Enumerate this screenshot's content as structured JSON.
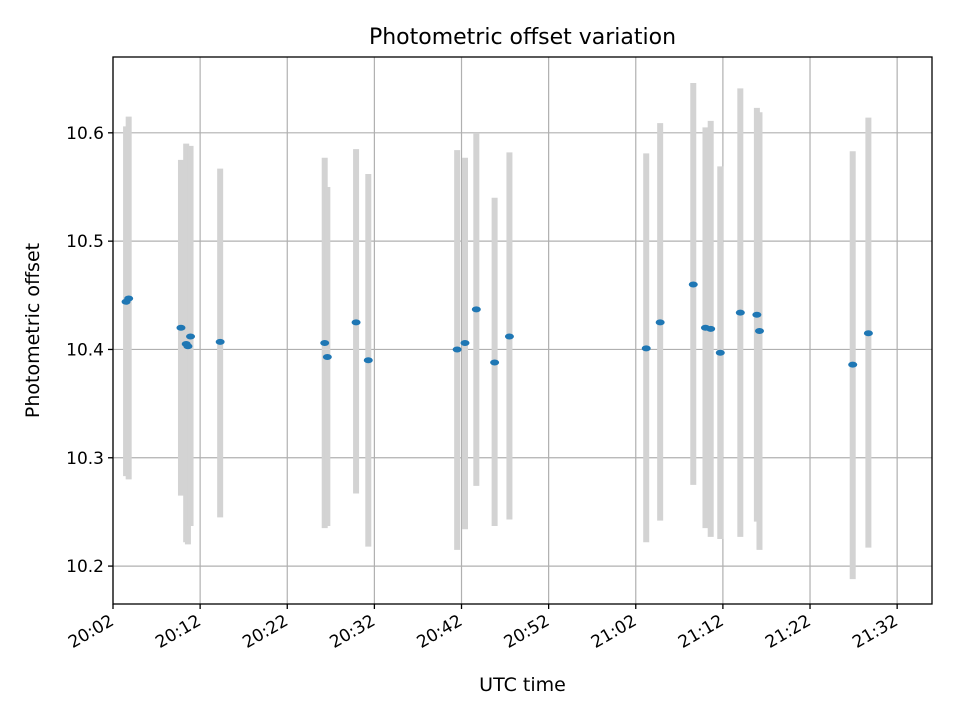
{
  "chart_data": {
    "type": "scatter",
    "title": "Photometric offset variation",
    "xlabel": "UTC time",
    "ylabel": "Photometric offset",
    "xlim": [
      "20:02:00",
      "21:36:00"
    ],
    "ylim": [
      10.165,
      10.67
    ],
    "grid": true,
    "x_ticks": [
      "20:02",
      "20:12",
      "20:22",
      "20:32",
      "20:42",
      "20:52",
      "21:02",
      "21:12",
      "21:22",
      "21:32"
    ],
    "y_ticks": [
      "10.2",
      "10.3",
      "10.4",
      "10.5",
      "10.6"
    ],
    "colors": {
      "point": "#1f77b4",
      "errorbar": "#d3d3d3",
      "grid": "#b0b0b0"
    },
    "points": [
      {
        "x": "20:03:30",
        "y": 10.444,
        "low": 10.283,
        "high": 10.606
      },
      {
        "x": "20:03:48",
        "y": 10.447,
        "low": 10.28,
        "high": 10.615
      },
      {
        "x": "20:09:48",
        "y": 10.42,
        "low": 10.265,
        "high": 10.575
      },
      {
        "x": "20:10:24",
        "y": 10.405,
        "low": 10.222,
        "high": 10.59
      },
      {
        "x": "20:10:36",
        "y": 10.403,
        "low": 10.22,
        "high": 10.587
      },
      {
        "x": "20:10:54",
        "y": 10.412,
        "low": 10.237,
        "high": 10.588
      },
      {
        "x": "20:14:18",
        "y": 10.407,
        "low": 10.245,
        "high": 10.567
      },
      {
        "x": "20:26:18",
        "y": 10.406,
        "low": 10.235,
        "high": 10.577
      },
      {
        "x": "20:26:36",
        "y": 10.393,
        "low": 10.237,
        "high": 10.55
      },
      {
        "x": "20:29:54",
        "y": 10.425,
        "low": 10.267,
        "high": 10.585
      },
      {
        "x": "20:31:18",
        "y": 10.39,
        "low": 10.218,
        "high": 10.562
      },
      {
        "x": "20:41:30",
        "y": 10.4,
        "low": 10.215,
        "high": 10.584
      },
      {
        "x": "20:42:24",
        "y": 10.406,
        "low": 10.234,
        "high": 10.577
      },
      {
        "x": "20:43:42",
        "y": 10.437,
        "low": 10.274,
        "high": 10.6
      },
      {
        "x": "20:45:48",
        "y": 10.388,
        "low": 10.237,
        "high": 10.54
      },
      {
        "x": "20:47:30",
        "y": 10.412,
        "low": 10.243,
        "high": 10.582
      },
      {
        "x": "21:03:12",
        "y": 10.401,
        "low": 10.222,
        "high": 10.581
      },
      {
        "x": "21:04:48",
        "y": 10.425,
        "low": 10.242,
        "high": 10.609
      },
      {
        "x": "21:08:36",
        "y": 10.46,
        "low": 10.275,
        "high": 10.646
      },
      {
        "x": "21:10:00",
        "y": 10.42,
        "low": 10.235,
        "high": 10.605
      },
      {
        "x": "21:10:36",
        "y": 10.419,
        "low": 10.227,
        "high": 10.611
      },
      {
        "x": "21:11:42",
        "y": 10.397,
        "low": 10.225,
        "high": 10.569
      },
      {
        "x": "21:14:00",
        "y": 10.434,
        "low": 10.227,
        "high": 10.641
      },
      {
        "x": "21:15:54",
        "y": 10.432,
        "low": 10.241,
        "high": 10.623
      },
      {
        "x": "21:16:12",
        "y": 10.417,
        "low": 10.215,
        "high": 10.619
      },
      {
        "x": "21:26:54",
        "y": 10.386,
        "low": 10.188,
        "high": 10.583
      },
      {
        "x": "21:28:42",
        "y": 10.415,
        "low": 10.217,
        "high": 10.614
      }
    ]
  }
}
